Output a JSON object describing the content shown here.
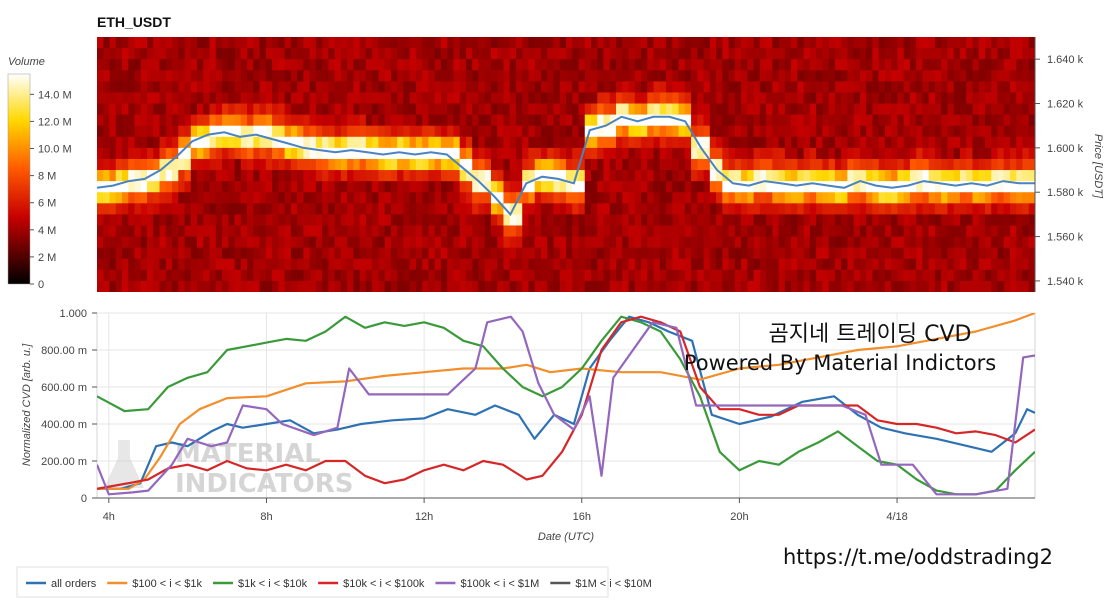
{
  "chart_data": [
    {
      "type": "heatmap",
      "title": "ETH_USDT",
      "ylabel": "Price [USDT]",
      "ylim": [
        1535,
        1650
      ],
      "y_ticks": [
        "1.540 k",
        "1.560 k",
        "1.580 k",
        "1.600 k",
        "1.620 k",
        "1.640 k"
      ],
      "y_tick_values": [
        1540,
        1560,
        1580,
        1600,
        1620,
        1640
      ],
      "colorbar": {
        "label": "Volume",
        "ticks": [
          "0",
          "2 M",
          "4 M",
          "6 M",
          "8 M",
          "10.0 M",
          "12.0 M",
          "14.0 M"
        ],
        "tick_values": [
          0,
          2,
          4,
          6,
          8,
          10,
          12,
          14
        ],
        "max": 15.5
      },
      "price_line_color": "#4a84c0",
      "price": [
        1582,
        1583,
        1585,
        1586,
        1590,
        1596,
        1603,
        1606,
        1607,
        1605,
        1606,
        1604,
        1602,
        1600,
        1599,
        1598,
        1599,
        1598,
        1597,
        1598,
        1597,
        1598,
        1597,
        1591,
        1585,
        1578,
        1570,
        1584,
        1587,
        1586,
        1584,
        1608,
        1610,
        1614,
        1612,
        1614,
        1614,
        1612,
        1600,
        1590,
        1584,
        1583,
        1585,
        1584,
        1583,
        1584,
        1583,
        1582,
        1585,
        1583,
        1582,
        1583,
        1585,
        1584,
        1583,
        1584,
        1583,
        1585,
        1584,
        1584
      ]
    },
    {
      "type": "line",
      "xlabel": "Date (UTC)",
      "ylabel": "Normalized CVD [arb. u.]",
      "ylim": [
        0,
        1
      ],
      "x_ticks": [
        "4h",
        "8h",
        "12h",
        "16h",
        "20h",
        "4/18"
      ],
      "x_tick_hours": [
        4,
        8,
        12,
        16,
        20,
        24
      ],
      "x_range_hours": [
        3.7,
        27.5
      ],
      "y_ticks": [
        "0",
        "200.00 m",
        "400.00 m",
        "600.00 m",
        "800.00 m",
        "1.000"
      ],
      "y_tick_values": [
        0,
        0.2,
        0.4,
        0.6,
        0.8,
        1.0
      ],
      "series": [
        {
          "name": "all orders",
          "color": "#2f72b4",
          "points": [
            [
              3.7,
              0.05
            ],
            [
              4.3,
              0.05
            ],
            [
              4.8,
              0.08
            ],
            [
              5.2,
              0.28
            ],
            [
              5.6,
              0.3
            ],
            [
              6,
              0.28
            ],
            [
              6.6,
              0.36
            ],
            [
              7,
              0.4
            ],
            [
              7.4,
              0.38
            ],
            [
              8,
              0.4
            ],
            [
              8.6,
              0.42
            ],
            [
              9.2,
              0.35
            ],
            [
              9.8,
              0.37
            ],
            [
              10.4,
              0.4
            ],
            [
              11.2,
              0.42
            ],
            [
              12,
              0.43
            ],
            [
              12.6,
              0.48
            ],
            [
              13.3,
              0.45
            ],
            [
              13.8,
              0.5
            ],
            [
              14.4,
              0.45
            ],
            [
              14.8,
              0.32
            ],
            [
              15.3,
              0.45
            ],
            [
              15.8,
              0.4
            ],
            [
              16.2,
              0.7
            ],
            [
              16.7,
              0.85
            ],
            [
              17.2,
              0.98
            ],
            [
              17.7,
              0.95
            ],
            [
              18.2,
              0.9
            ],
            [
              18.8,
              0.85
            ],
            [
              19.3,
              0.45
            ],
            [
              20,
              0.4
            ],
            [
              20.8,
              0.44
            ],
            [
              21.6,
              0.52
            ],
            [
              22.4,
              0.55
            ],
            [
              23,
              0.45
            ],
            [
              23.6,
              0.38
            ],
            [
              24.2,
              0.35
            ],
            [
              25,
              0.32
            ],
            [
              25.8,
              0.28
            ],
            [
              26.4,
              0.25
            ],
            [
              27,
              0.35
            ],
            [
              27.3,
              0.48
            ],
            [
              27.5,
              0.46
            ]
          ]
        },
        {
          "name": "$100 < i < $1k",
          "color": "#f28e2b",
          "points": [
            [
              3.7,
              0.05
            ],
            [
              4.5,
              0.05
            ],
            [
              4.9,
              0.1
            ],
            [
              5.3,
              0.22
            ],
            [
              5.8,
              0.4
            ],
            [
              6.3,
              0.48
            ],
            [
              7,
              0.54
            ],
            [
              8,
              0.55
            ],
            [
              9,
              0.62
            ],
            [
              10,
              0.63
            ],
            [
              11,
              0.66
            ],
            [
              12,
              0.68
            ],
            [
              13,
              0.7
            ],
            [
              14,
              0.7
            ],
            [
              14.6,
              0.72
            ],
            [
              15.2,
              0.68
            ],
            [
              16,
              0.7
            ],
            [
              17,
              0.68
            ],
            [
              18,
              0.68
            ],
            [
              19,
              0.64
            ],
            [
              20,
              0.7
            ],
            [
              21,
              0.72
            ],
            [
              22,
              0.76
            ],
            [
              23,
              0.8
            ],
            [
              24,
              0.82
            ],
            [
              25,
              0.86
            ],
            [
              26,
              0.9
            ],
            [
              27,
              0.96
            ],
            [
              27.5,
              1.0
            ]
          ]
        },
        {
          "name": "$1k < i < $10k",
          "color": "#3a9a3a",
          "points": [
            [
              3.7,
              0.55
            ],
            [
              4.4,
              0.47
            ],
            [
              5,
              0.48
            ],
            [
              5.5,
              0.6
            ],
            [
              6,
              0.65
            ],
            [
              6.5,
              0.68
            ],
            [
              7,
              0.8
            ],
            [
              7.5,
              0.82
            ],
            [
              8,
              0.84
            ],
            [
              8.5,
              0.86
            ],
            [
              9,
              0.85
            ],
            [
              9.5,
              0.9
            ],
            [
              10,
              0.98
            ],
            [
              10.5,
              0.92
            ],
            [
              11,
              0.95
            ],
            [
              11.5,
              0.93
            ],
            [
              12,
              0.95
            ],
            [
              12.5,
              0.92
            ],
            [
              13,
              0.85
            ],
            [
              13.5,
              0.82
            ],
            [
              14,
              0.7
            ],
            [
              14.5,
              0.6
            ],
            [
              15,
              0.55
            ],
            [
              15.5,
              0.6
            ],
            [
              16,
              0.7
            ],
            [
              16.5,
              0.85
            ],
            [
              17,
              0.98
            ],
            [
              17.5,
              0.95
            ],
            [
              18,
              0.9
            ],
            [
              18.5,
              0.75
            ],
            [
              19,
              0.55
            ],
            [
              19.5,
              0.25
            ],
            [
              20,
              0.15
            ],
            [
              20.5,
              0.2
            ],
            [
              21,
              0.18
            ],
            [
              21.5,
              0.25
            ],
            [
              22,
              0.3
            ],
            [
              22.5,
              0.36
            ],
            [
              23,
              0.28
            ],
            [
              23.5,
              0.2
            ],
            [
              24,
              0.18
            ],
            [
              24.5,
              0.1
            ],
            [
              25,
              0.04
            ],
            [
              25.5,
              0.02
            ],
            [
              26,
              0.02
            ],
            [
              26.5,
              0.04
            ],
            [
              27,
              0.15
            ],
            [
              27.5,
              0.25
            ]
          ]
        },
        {
          "name": "$10k < i < $100k",
          "color": "#d62728",
          "points": [
            [
              3.7,
              0.05
            ],
            [
              4.5,
              0.08
            ],
            [
              5,
              0.1
            ],
            [
              5.5,
              0.16
            ],
            [
              6,
              0.18
            ],
            [
              6.5,
              0.15
            ],
            [
              7,
              0.2
            ],
            [
              7.5,
              0.16
            ],
            [
              8,
              0.15
            ],
            [
              8.5,
              0.18
            ],
            [
              9,
              0.15
            ],
            [
              9.5,
              0.2
            ],
            [
              10,
              0.2
            ],
            [
              10.5,
              0.12
            ],
            [
              11,
              0.08
            ],
            [
              11.5,
              0.1
            ],
            [
              12,
              0.15
            ],
            [
              12.5,
              0.18
            ],
            [
              13,
              0.15
            ],
            [
              13.5,
              0.2
            ],
            [
              14,
              0.18
            ],
            [
              14.6,
              0.1
            ],
            [
              15,
              0.12
            ],
            [
              15.5,
              0.25
            ],
            [
              16,
              0.45
            ],
            [
              16.5,
              0.8
            ],
            [
              17,
              0.95
            ],
            [
              17.5,
              0.98
            ],
            [
              18,
              0.95
            ],
            [
              18.5,
              0.9
            ],
            [
              19,
              0.6
            ],
            [
              19.5,
              0.48
            ],
            [
              20,
              0.48
            ],
            [
              20.5,
              0.45
            ],
            [
              21,
              0.45
            ],
            [
              21.5,
              0.5
            ],
            [
              22,
              0.5
            ],
            [
              23,
              0.5
            ],
            [
              23.5,
              0.42
            ],
            [
              24,
              0.4
            ],
            [
              24.5,
              0.4
            ],
            [
              25,
              0.38
            ],
            [
              25.5,
              0.35
            ],
            [
              26,
              0.36
            ],
            [
              26.5,
              0.34
            ],
            [
              27,
              0.3
            ],
            [
              27.5,
              0.37
            ]
          ]
        },
        {
          "name": "$100k < i < $1M",
          "color": "#9467bd",
          "points": [
            [
              3.7,
              0.18
            ],
            [
              4.0,
              0.02
            ],
            [
              4.6,
              0.03
            ],
            [
              5,
              0.04
            ],
            [
              5.6,
              0.18
            ],
            [
              6,
              0.32
            ],
            [
              6.6,
              0.28
            ],
            [
              7,
              0.3
            ],
            [
              7.4,
              0.5
            ],
            [
              8,
              0.48
            ],
            [
              8.4,
              0.4
            ],
            [
              9.2,
              0.34
            ],
            [
              9.8,
              0.38
            ],
            [
              10.1,
              0.7
            ],
            [
              10.6,
              0.56
            ],
            [
              11.2,
              0.56
            ],
            [
              12,
              0.56
            ],
            [
              12.6,
              0.56
            ],
            [
              13.3,
              0.7
            ],
            [
              13.6,
              0.95
            ],
            [
              14.2,
              0.98
            ],
            [
              14.5,
              0.9
            ],
            [
              14.9,
              0.62
            ],
            [
              15.3,
              0.45
            ],
            [
              15.8,
              0.37
            ],
            [
              16.2,
              0.55
            ],
            [
              16.5,
              0.12
            ],
            [
              16.8,
              0.65
            ],
            [
              17.3,
              0.8
            ],
            [
              17.8,
              0.95
            ],
            [
              18.4,
              0.92
            ],
            [
              18.9,
              0.5
            ],
            [
              19.6,
              0.5
            ],
            [
              20.4,
              0.5
            ],
            [
              21.2,
              0.5
            ],
            [
              22,
              0.5
            ],
            [
              22.6,
              0.5
            ],
            [
              23.2,
              0.45
            ],
            [
              23.6,
              0.18
            ],
            [
              24.4,
              0.18
            ],
            [
              25,
              0.02
            ],
            [
              26,
              0.02
            ],
            [
              26.8,
              0.05
            ],
            [
              27.2,
              0.76
            ],
            [
              27.5,
              0.77
            ]
          ]
        },
        {
          "name": "$1M < i < $10M",
          "color": "#555555",
          "points": []
        }
      ]
    }
  ],
  "overlay": {
    "title_line": "곰지네 트레이딩 CVD",
    "powered_line": "Powered By Material Indictors",
    "url": "https://t.me/oddstrading2",
    "watermark_line1": "MATERIAL",
    "watermark_line2": "INDICATORS"
  }
}
